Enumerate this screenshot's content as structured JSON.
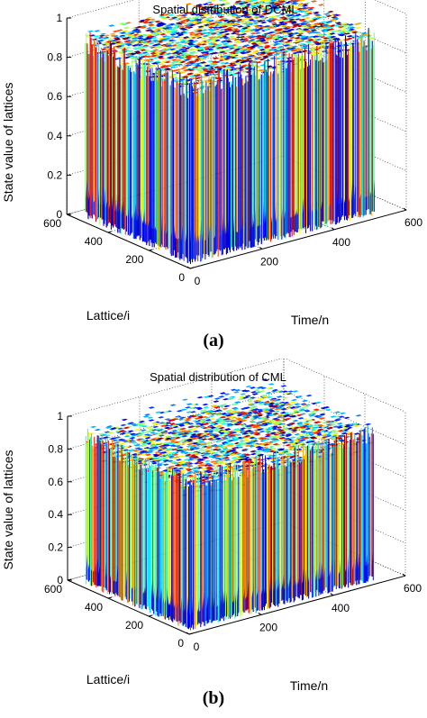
{
  "chart_data": [
    {
      "type": "surface3d",
      "caption": "(a)",
      "title": "Spatial distribution of DCML",
      "xlabel": "Time/n",
      "ylabel": "Lattice/i",
      "zlabel": "State value of lattices",
      "x_ticks": [
        "0",
        "200",
        "400",
        "600"
      ],
      "y_ticks": [
        "0",
        "200",
        "400",
        "600"
      ],
      "z_ticks": [
        "0",
        "0.2",
        "0.4",
        "0.6",
        "0.8",
        "1"
      ],
      "xlim": [
        0,
        600
      ],
      "ylim": [
        0,
        600
      ],
      "zlim": [
        0,
        1
      ],
      "grid": true,
      "colormap": "jet",
      "pattern": "uniform random chaotic states across lattice and time"
    },
    {
      "type": "surface3d",
      "caption": "(b)",
      "title": "Spatial distribution of CML",
      "xlabel": "Time/n",
      "ylabel": "Lattice/i",
      "zlabel": "State value of lattices",
      "x_ticks": [
        "0",
        "200",
        "400",
        "600"
      ],
      "y_ticks": [
        "0",
        "200",
        "400",
        "600"
      ],
      "z_ticks": [
        "0",
        "0.2",
        "0.4",
        "0.6",
        "0.8",
        "1"
      ],
      "xlim": [
        0,
        600
      ],
      "ylim": [
        0,
        600
      ],
      "zlim": [
        0,
        1
      ],
      "grid": true,
      "colormap": "jet",
      "pattern": "chaotic states with periodic diagonal stripe windows"
    }
  ]
}
